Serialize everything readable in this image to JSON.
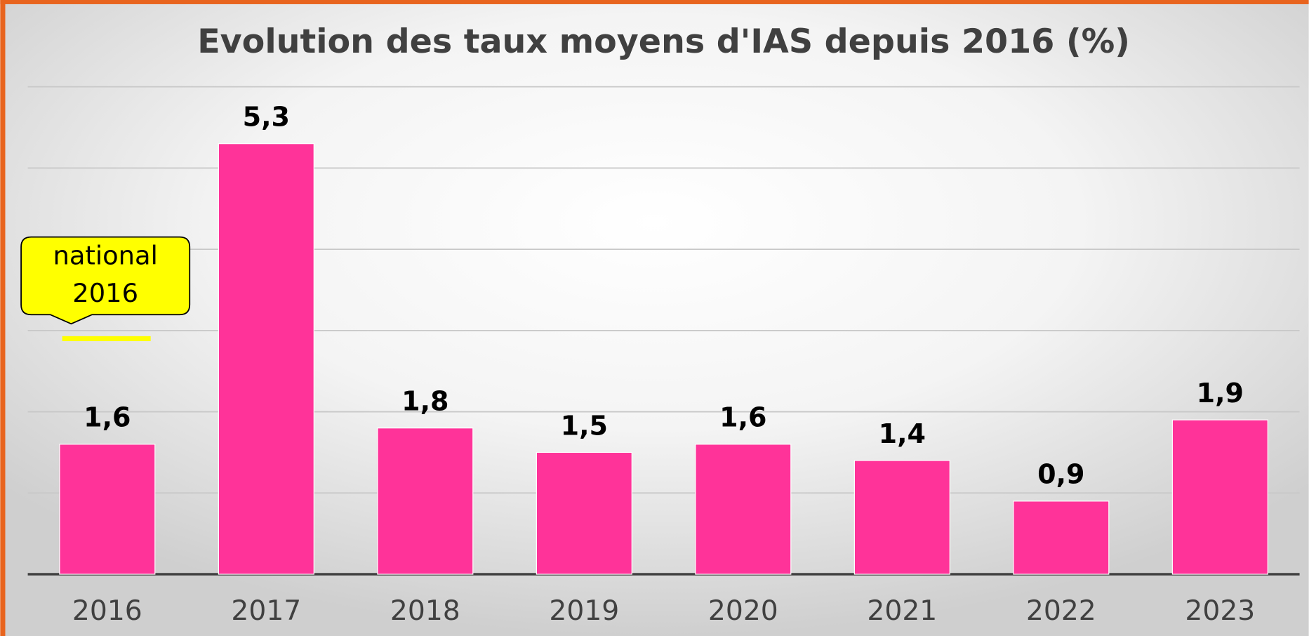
{
  "chart_data": {
    "type": "bar",
    "title": "Evolution des taux moyens d'IAS depuis 2016 (%)",
    "categories": [
      "2016",
      "2017",
      "2018",
      "2019",
      "2020",
      "2021",
      "2022",
      "2023"
    ],
    "values": [
      1.6,
      5.3,
      1.8,
      1.5,
      1.6,
      1.4,
      0.9,
      1.9
    ],
    "value_labels": [
      "1,6",
      "5,3",
      "1,8",
      "1,5",
      "1,6",
      "1,4",
      "0,9",
      "1,9"
    ],
    "color": "#ff3399",
    "ylim": [
      0,
      6
    ],
    "yticks": [
      0,
      1,
      2,
      3,
      4,
      5,
      6
    ],
    "grid": true,
    "annotation": {
      "lines": [
        "national",
        "2016"
      ],
      "value": 2.9,
      "color": "#ffff00"
    }
  }
}
